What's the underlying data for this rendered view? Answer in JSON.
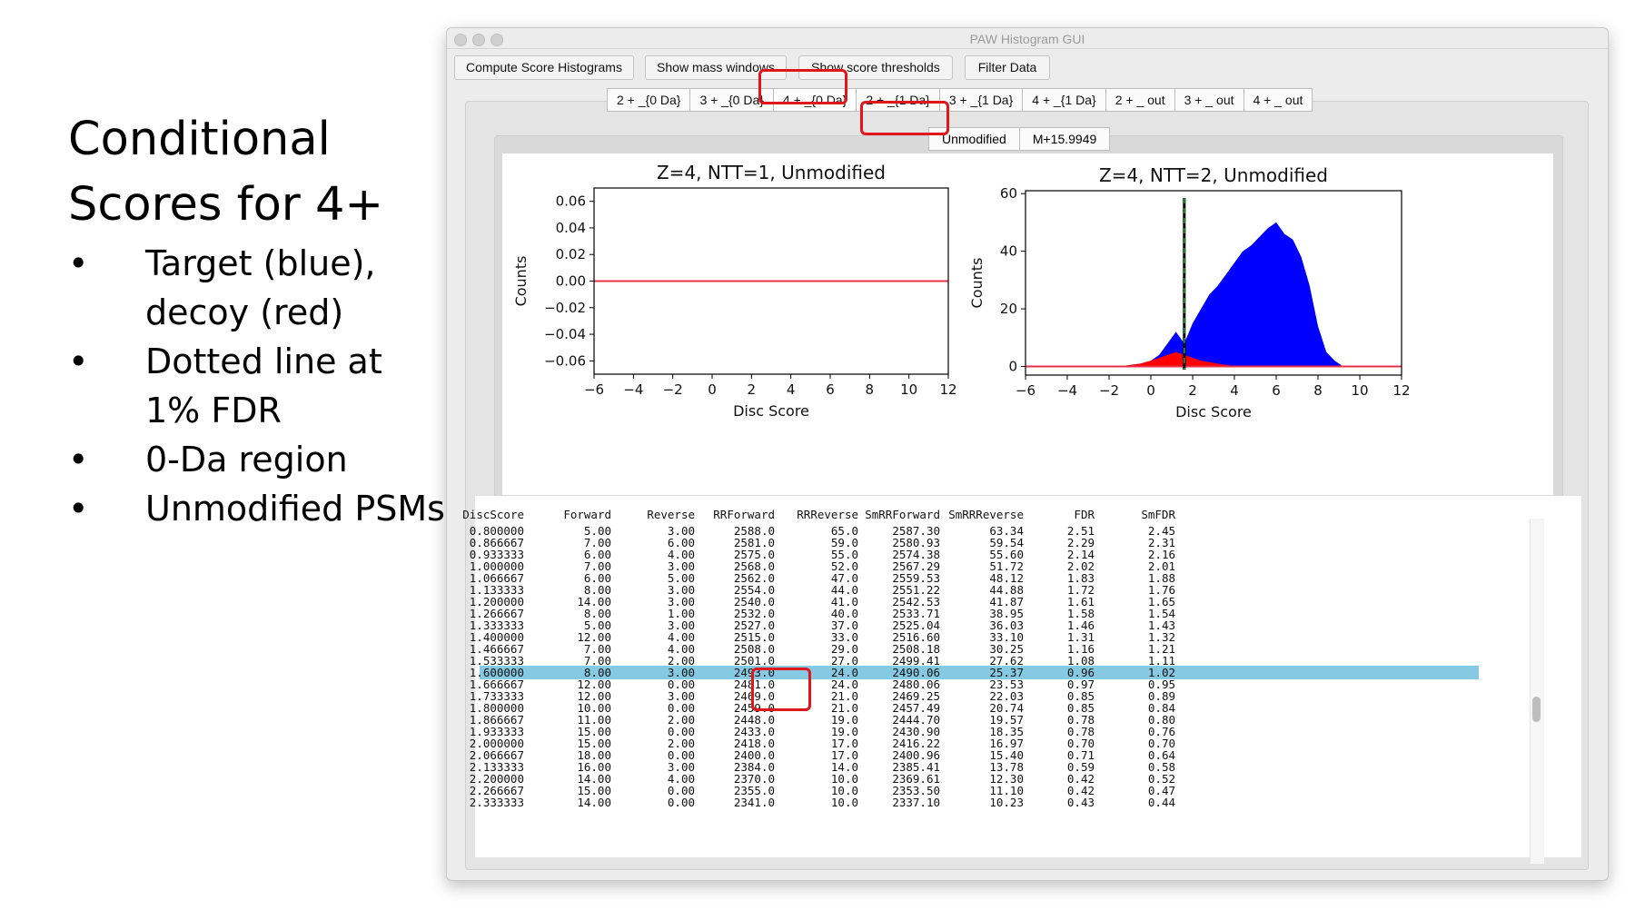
{
  "slide": {
    "title": "Conditional Scores for 4+",
    "bullets": [
      "Target (blue), decoy (red)",
      "Dotted line at 1% FDR",
      "0-Da region",
      "Unmodified PSMs"
    ]
  },
  "window": {
    "title": "PAW Histogram GUI",
    "toolbar": [
      "Compute Score Histograms",
      "Show mass windows",
      "Show score thresholds",
      "Filter Data"
    ],
    "tabs": [
      "2 + _{0 Da}",
      "3 + _{0 Da}",
      "4 + _{0 Da}",
      "2 + _{1 Da}",
      "3 + _{1 Da}",
      "4 + _{1 Da}",
      "2 + _ out",
      "3 + _ out",
      "4 + _ out"
    ],
    "selected_tab": "4 + _{0 Da}",
    "subtabs": [
      "Unmodified",
      "M+15.9949"
    ],
    "selected_subtab": "Unmodified"
  },
  "colors": {
    "target": "#0000ff",
    "decoy": "#ff0000",
    "highlight_box": "#e0161b",
    "selected_row": "#85c9e3"
  },
  "chart_data": [
    {
      "type": "area",
      "title": "Z=4, NTT=1, Unmodified",
      "xlabel": "Disc Score",
      "ylabel": "Counts",
      "xlim": [
        -6,
        12
      ],
      "ylim": [
        -0.07,
        0.07
      ],
      "xticks": [
        -6,
        -4,
        -2,
        0,
        2,
        4,
        6,
        8,
        10,
        12
      ],
      "yticks": [
        -0.06,
        -0.04,
        -0.02,
        0.0,
        0.02,
        0.04,
        0.06
      ],
      "ytick_labels": [
        "−0.06",
        "−0.04",
        "−0.02",
        "0.00",
        "0.02",
        "0.04",
        "0.06"
      ],
      "xtick_labels": [
        "−6",
        "−4",
        "−2",
        "0",
        "2",
        "4",
        "6",
        "8",
        "10",
        "12"
      ],
      "series": [
        {
          "color": "#0000ff",
          "x": [
            -6,
            12
          ],
          "y": [
            0,
            0
          ]
        },
        {
          "color": "#ff0000",
          "x": [
            -6,
            12
          ],
          "y": [
            0,
            0
          ]
        }
      ]
    },
    {
      "type": "area",
      "title": "Z=4, NTT=2, Unmodified",
      "xlabel": "Disc Score",
      "ylabel": "Counts",
      "xlim": [
        -6,
        12
      ],
      "ylim": [
        -3,
        61
      ],
      "xticks": [
        -6,
        -4,
        -2,
        0,
        2,
        4,
        6,
        8,
        10,
        12
      ],
      "yticks": [
        0,
        20,
        40,
        60
      ],
      "ytick_labels": [
        "0",
        "20",
        "40",
        "60"
      ],
      "xtick_labels": [
        "−6",
        "−4",
        "−2",
        "0",
        "2",
        "4",
        "6",
        "8",
        "10",
        "12"
      ],
      "threshold": 1.6,
      "series": [
        {
          "color": "#0000ff",
          "x": [
            -1.5,
            -1.0,
            -0.5,
            0.0,
            0.4,
            0.8,
            1.2,
            1.6,
            2.0,
            2.4,
            2.8,
            3.2,
            3.6,
            4.0,
            4.4,
            4.8,
            5.2,
            5.6,
            6.0,
            6.4,
            6.8,
            7.2,
            7.6,
            8.0,
            8.4,
            8.8,
            9.2
          ],
          "y": [
            0,
            0.5,
            1,
            2,
            4,
            8,
            12,
            8,
            15,
            20,
            25,
            28,
            32,
            36,
            40,
            42,
            45,
            48,
            50,
            46,
            44,
            38,
            28,
            14,
            5,
            2,
            0
          ]
        },
        {
          "color": "#ff0000",
          "x": [
            -1.5,
            -1.0,
            -0.5,
            0.0,
            0.4,
            0.8,
            1.2,
            1.6,
            2.0,
            2.4,
            2.8,
            3.2,
            3.6,
            4.0,
            4.4
          ],
          "y": [
            0,
            0.5,
            1,
            2,
            3,
            4,
            5,
            4,
            3,
            2,
            1.5,
            1,
            0.5,
            0.2,
            0
          ]
        }
      ]
    }
  ],
  "table": {
    "headers": [
      "DiscScore",
      "Forward",
      "Reverse",
      "RRForward",
      "RRReverse",
      "SmRRForward",
      "SmRRReverse",
      "FDR",
      "SmFDR"
    ],
    "selected_index": 12,
    "rows": [
      [
        "0.800000",
        "5.00",
        "3.00",
        "2588.0",
        "65.0",
        "2587.30",
        "63.34",
        "2.51",
        "2.45"
      ],
      [
        "0.866667",
        "7.00",
        "6.00",
        "2581.0",
        "59.0",
        "2580.93",
        "59.54",
        "2.29",
        "2.31"
      ],
      [
        "0.933333",
        "6.00",
        "4.00",
        "2575.0",
        "55.0",
        "2574.38",
        "55.60",
        "2.14",
        "2.16"
      ],
      [
        "1.000000",
        "7.00",
        "3.00",
        "2568.0",
        "52.0",
        "2567.29",
        "51.72",
        "2.02",
        "2.01"
      ],
      [
        "1.066667",
        "6.00",
        "5.00",
        "2562.0",
        "47.0",
        "2559.53",
        "48.12",
        "1.83",
        "1.88"
      ],
      [
        "1.133333",
        "8.00",
        "3.00",
        "2554.0",
        "44.0",
        "2551.22",
        "44.88",
        "1.72",
        "1.76"
      ],
      [
        "1.200000",
        "14.00",
        "3.00",
        "2540.0",
        "41.0",
        "2542.53",
        "41.87",
        "1.61",
        "1.65"
      ],
      [
        "1.266667",
        "8.00",
        "1.00",
        "2532.0",
        "40.0",
        "2533.71",
        "38.95",
        "1.58",
        "1.54"
      ],
      [
        "1.333333",
        "5.00",
        "3.00",
        "2527.0",
        "37.0",
        "2525.04",
        "36.03",
        "1.46",
        "1.43"
      ],
      [
        "1.400000",
        "12.00",
        "4.00",
        "2515.0",
        "33.0",
        "2516.60",
        "33.10",
        "1.31",
        "1.32"
      ],
      [
        "1.466667",
        "7.00",
        "4.00",
        "2508.0",
        "29.0",
        "2508.18",
        "30.25",
        "1.16",
        "1.21"
      ],
      [
        "1.533333",
        "7.00",
        "2.00",
        "2501.0",
        "27.0",
        "2499.41",
        "27.62",
        "1.08",
        "1.11"
      ],
      [
        "1.600000",
        "8.00",
        "3.00",
        "2493.0",
        "24.0",
        "2490.06",
        "25.37",
        "0.96",
        "1.02"
      ],
      [
        "1.666667",
        "12.00",
        "0.00",
        "2481.0",
        "24.0",
        "2480.06",
        "23.53",
        "0.97",
        "0.95"
      ],
      [
        "1.733333",
        "12.00",
        "3.00",
        "2469.0",
        "21.0",
        "2469.25",
        "22.03",
        "0.85",
        "0.89"
      ],
      [
        "1.800000",
        "10.00",
        "0.00",
        "2459.0",
        "21.0",
        "2457.49",
        "20.74",
        "0.85",
        "0.84"
      ],
      [
        "1.866667",
        "11.00",
        "2.00",
        "2448.0",
        "19.0",
        "2444.70",
        "19.57",
        "0.78",
        "0.80"
      ],
      [
        "1.933333",
        "15.00",
        "0.00",
        "2433.0",
        "19.0",
        "2430.90",
        "18.35",
        "0.78",
        "0.76"
      ],
      [
        "2.000000",
        "15.00",
        "2.00",
        "2418.0",
        "17.0",
        "2416.22",
        "16.97",
        "0.70",
        "0.70"
      ],
      [
        "2.066667",
        "18.00",
        "0.00",
        "2400.0",
        "17.0",
        "2400.96",
        "15.40",
        "0.71",
        "0.64"
      ],
      [
        "2.133333",
        "16.00",
        "3.00",
        "2384.0",
        "14.0",
        "2385.41",
        "13.78",
        "0.59",
        "0.58"
      ],
      [
        "2.200000",
        "14.00",
        "4.00",
        "2370.0",
        "10.0",
        "2369.61",
        "12.30",
        "0.42",
        "0.52"
      ],
      [
        "2.266667",
        "15.00",
        "0.00",
        "2355.0",
        "10.0",
        "2353.50",
        "11.10",
        "0.42",
        "0.47"
      ],
      [
        "2.333333",
        "14.00",
        "0.00",
        "2341.0",
        "10.0",
        "2337.10",
        "10.23",
        "0.43",
        "0.44"
      ]
    ]
  }
}
